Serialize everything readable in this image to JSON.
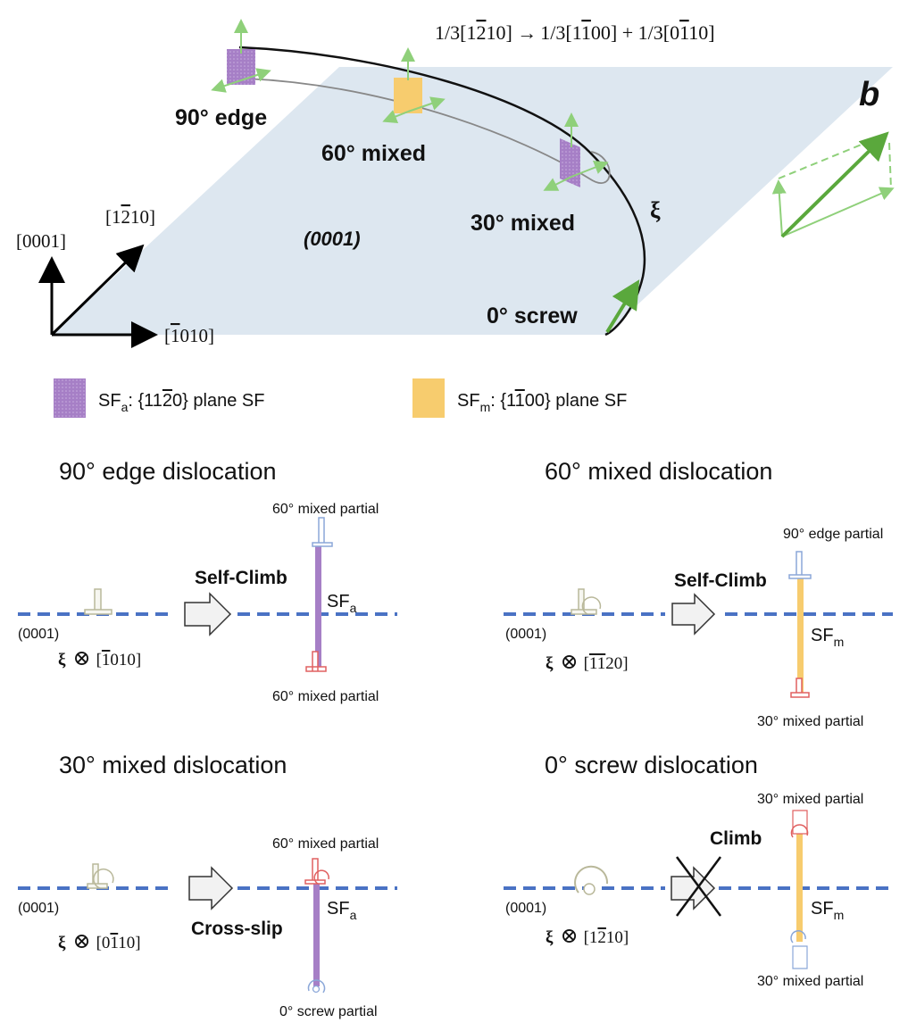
{
  "header": {
    "reaction": "1/3[1̅2̅...]"
  },
  "top": {
    "reaction_parts": {
      "a": "1/3[1",
      "a_bar": "2",
      "a_end": "10] →",
      "b": "1/3[1",
      "b_bar": "1",
      "b_end": "00] + 1/3[0",
      "c_bar": "1",
      "c_end": "10]"
    },
    "labels": {
      "edge90": "90° edge",
      "mixed60": "60° mixed",
      "mixed30": "30° mixed",
      "screw0": "0° screw",
      "plane": "(0001)",
      "xi": "ξ",
      "b": "b"
    },
    "axes": {
      "z_label": "[0001]",
      "y_pre": "[1",
      "y_bar": "2",
      "y_post": "10]",
      "x_pre": "[",
      "x_bar": "1",
      "x_post": "010]"
    },
    "colors": {
      "plane": "#dde7f0",
      "sf_a": "#a67fc6",
      "sf_m": "#f7cc6e",
      "burgers_main": "#5aa83c",
      "burgers_light": "#8fd07a"
    }
  },
  "legend": {
    "sfa_label": "SF",
    "sfa_sub": "a",
    "sfa_text_pre": ":  {11",
    "sfa_text_bar": "2",
    "sfa_text_post": "0} plane SF",
    "sfm_label": "SF",
    "sfm_sub": "m",
    "sfm_text_pre": ": {1",
    "sfm_text_bar": "1",
    "sfm_text_post": "00} plane SF"
  },
  "panels": {
    "edge": {
      "title": "90° edge dislocation",
      "top_partial": "60° mixed partial",
      "bottom_partial": "60° mixed partial",
      "mechanism": "Self-Climb",
      "sf": "SF",
      "sf_sub": "a",
      "plane": "(0001)",
      "xi": "ξ",
      "otimes": "⊗",
      "dir_pre": "[",
      "dir_bar": "1",
      "dir_post": "010]"
    },
    "mixed60": {
      "title": "60° mixed dislocation",
      "top_partial": "90° edge partial",
      "bottom_partial": "30° mixed partial",
      "mechanism": "Self-Climb",
      "sf": "SF",
      "sf_sub": "m",
      "plane": "(0001)",
      "xi": "ξ",
      "otimes": "⊗",
      "dir_pre": "[",
      "dir_bar": "11",
      "dir_post": "20]"
    },
    "mixed30": {
      "title": "30° mixed dislocation",
      "top_partial": "60° mixed partial",
      "bottom_partial": "0° screw partial",
      "mechanism": "Cross-slip",
      "sf": "SF",
      "sf_sub": "a",
      "plane": "(0001)",
      "xi": "ξ",
      "otimes": "⊗",
      "dir_pre": "[0",
      "dir_bar": "1",
      "dir_post": "10]"
    },
    "screw": {
      "title": "0° screw dislocation",
      "top_partial": "30° mixed partial",
      "bottom_partial": "30° mixed partial",
      "mechanism": "Climb",
      "sf": "SF",
      "sf_sub": "m",
      "plane": "(0001)",
      "xi": "ξ",
      "otimes": "⊗",
      "dir_pre": "[1",
      "dir_bar": "2",
      "dir_post": "10]"
    }
  }
}
